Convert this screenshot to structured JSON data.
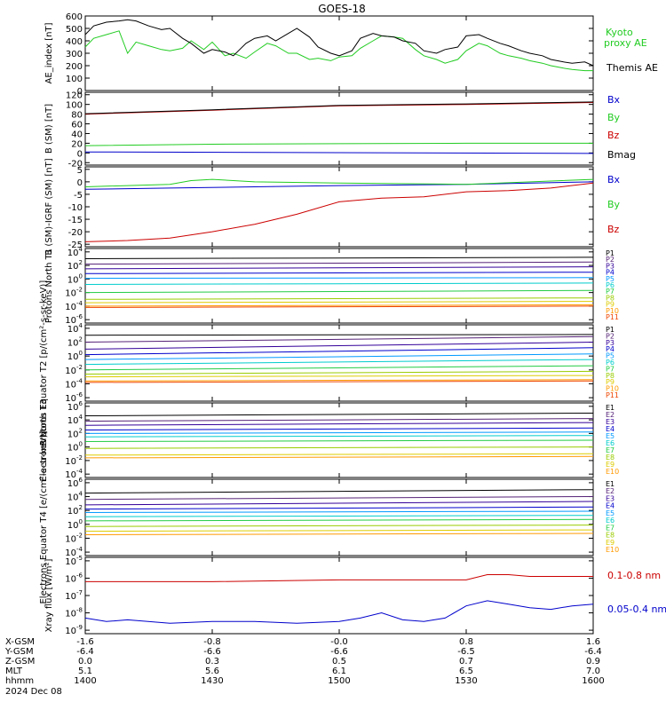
{
  "title": "GOES-18",
  "colors": {
    "black": "#000000",
    "red": "#cc0000",
    "green": "#22cc22",
    "blue": "#0000cc",
    "spec": [
      "#000000",
      "#552277",
      "#330099",
      "#0000cc",
      "#0099ff",
      "#00cccc",
      "#22cc44",
      "#99cc00",
      "#ddcc00",
      "#ff9900",
      "#ee4400",
      "#cc0000"
    ]
  },
  "chart_data": [
    {
      "type": "line",
      "panel": "ae",
      "ylabel": "AE_index [nT]",
      "yticks": [
        "600",
        "500",
        "400",
        "300",
        "200",
        "100",
        "0"
      ],
      "ylim": [
        0,
        600
      ],
      "series": [
        {
          "name": "Kyoto proxy AE",
          "color": "#22cc22",
          "x": [
            1400,
            1402,
            1405,
            1408,
            1410,
            1412,
            1415,
            1418,
            1420,
            1423,
            1425,
            1428,
            1430,
            1433,
            1435,
            1438,
            1440,
            1443,
            1445,
            1448,
            1450,
            1453,
            1455,
            1458,
            1500,
            1503,
            1505,
            1508,
            1510,
            1513,
            1515,
            1518,
            1520,
            1523,
            1525,
            1528,
            1530,
            1533,
            1535,
            1538,
            1540,
            1543,
            1545,
            1548,
            1550,
            1553,
            1555,
            1558,
            1600
          ],
          "y": [
            350,
            420,
            450,
            480,
            300,
            390,
            360,
            330,
            320,
            340,
            400,
            330,
            390,
            280,
            300,
            260,
            310,
            380,
            360,
            300,
            300,
            250,
            260,
            240,
            270,
            280,
            340,
            400,
            440,
            430,
            420,
            330,
            280,
            250,
            220,
            250,
            320,
            380,
            360,
            300,
            280,
            260,
            240,
            220,
            200,
            180,
            170,
            160,
            160
          ]
        },
        {
          "name": "Themis AE",
          "color": "#000000",
          "x": [
            1400,
            1402,
            1405,
            1408,
            1410,
            1412,
            1415,
            1418,
            1420,
            1423,
            1425,
            1428,
            1430,
            1433,
            1435,
            1438,
            1440,
            1443,
            1445,
            1448,
            1450,
            1453,
            1455,
            1458,
            1500,
            1503,
            1505,
            1508,
            1510,
            1513,
            1515,
            1518,
            1520,
            1523,
            1525,
            1528,
            1530,
            1533,
            1535,
            1538,
            1540,
            1543,
            1545,
            1548,
            1550,
            1553,
            1555,
            1558,
            1600
          ],
          "y": [
            450,
            520,
            550,
            560,
            570,
            560,
            520,
            490,
            500,
            420,
            380,
            300,
            330,
            310,
            280,
            380,
            420,
            440,
            400,
            460,
            500,
            430,
            350,
            300,
            280,
            320,
            420,
            460,
            440,
            430,
            400,
            380,
            320,
            300,
            330,
            350,
            440,
            450,
            420,
            380,
            360,
            320,
            300,
            280,
            250,
            230,
            220,
            230,
            200
          ]
        }
      ],
      "legend": [
        "Kyoto",
        "proxy AE",
        "Themis AE"
      ]
    },
    {
      "type": "line",
      "panel": "bsm",
      "ylabel": "B (SM) [nT]",
      "yticks": [
        "120",
        "100",
        "80",
        "60",
        "40",
        "20",
        "0",
        "-20"
      ],
      "ylim": [
        -25,
        125
      ],
      "series": [
        {
          "name": "Bx",
          "color": "#0000cc",
          "x": [
            1400,
            1600
          ],
          "y": [
            2,
            -1
          ]
        },
        {
          "name": "By",
          "color": "#22cc22",
          "x": [
            1400,
            1430,
            1500,
            1530,
            1600
          ],
          "y": [
            15,
            18,
            19,
            20,
            20
          ]
        },
        {
          "name": "Bz",
          "color": "#cc0000",
          "x": [
            1400,
            1430,
            1500,
            1530,
            1600
          ],
          "y": [
            80,
            88,
            97,
            100,
            104
          ]
        },
        {
          "name": "Bmag",
          "color": "#000000",
          "x": [
            1400,
            1430,
            1500,
            1530,
            1600
          ],
          "y": [
            81,
            89,
            98,
            101,
            105
          ]
        }
      ]
    },
    {
      "type": "line",
      "panel": "bsm-igrf",
      "ylabel": "B (SM)-IGRF (SM) [nT]",
      "yticks": [
        "5",
        "0",
        "-5",
        "-10",
        "-15",
        "-20",
        "-25"
      ],
      "ylim": [
        -26,
        6
      ],
      "series": [
        {
          "name": "Bx",
          "color": "#0000cc",
          "x": [
            1400,
            1420,
            1440,
            1500,
            1530,
            1600
          ],
          "y": [
            -3,
            -2.5,
            -2,
            -1.5,
            -1,
            0
          ]
        },
        {
          "name": "By",
          "color": "#22cc22",
          "x": [
            1400,
            1420,
            1425,
            1430,
            1440,
            1500,
            1530,
            1600
          ],
          "y": [
            -2,
            -1,
            0.5,
            1,
            0,
            -0.5,
            -1,
            1
          ]
        },
        {
          "name": "Bz",
          "color": "#cc0000",
          "x": [
            1400,
            1410,
            1420,
            1430,
            1440,
            1450,
            1500,
            1510,
            1520,
            1530,
            1540,
            1550,
            1600
          ],
          "y": [
            -24,
            -23.5,
            -22.5,
            -20,
            -17,
            -13,
            -8,
            -6.5,
            -6,
            -4,
            -3.5,
            -2.5,
            -0.5
          ]
        }
      ]
    },
    {
      "type": "line",
      "panel": "prot-n",
      "ylabel": "Protons North T1",
      "yticks": [
        "10^4",
        "10^2",
        "10^0",
        "10^-2",
        "10^-4",
        "10^-6"
      ],
      "ylim": [
        -6.5,
        4.5
      ],
      "log": true,
      "series": [
        {
          "name": "P1",
          "x": [
            1400,
            1600
          ],
          "y": [
            3.0,
            3.2
          ]
        },
        {
          "name": "P2",
          "x": [
            1400,
            1600
          ],
          "y": [
            2.2,
            2.5
          ]
        },
        {
          "name": "P3",
          "x": [
            1400,
            1600
          ],
          "y": [
            1.5,
            1.8
          ]
        },
        {
          "name": "P4",
          "x": [
            1400,
            1600
          ],
          "y": [
            0.8,
            1.0
          ]
        },
        {
          "name": "P5",
          "x": [
            1400,
            1600
          ],
          "y": [
            0.1,
            0.2
          ]
        },
        {
          "name": "P6",
          "x": [
            1400,
            1600
          ],
          "y": [
            -0.8,
            -0.6
          ]
        },
        {
          "name": "P7",
          "x": [
            1400,
            1600
          ],
          "y": [
            -2.0,
            -1.7
          ]
        },
        {
          "name": "P8",
          "x": [
            1400,
            1600
          ],
          "y": [
            -3.0,
            -2.8
          ]
        },
        {
          "name": "P9",
          "x": [
            1400,
            1600
          ],
          "y": [
            -3.5,
            -3.3
          ]
        },
        {
          "name": "P10",
          "x": [
            1400,
            1600
          ],
          "y": [
            -4.0,
            -3.8
          ]
        },
        {
          "name": "P11",
          "x": [
            1400,
            1600
          ],
          "y": [
            -4.2,
            -4.0
          ]
        }
      ]
    },
    {
      "type": "line",
      "panel": "prot-e",
      "ylabel": "Protons Equator T2 [p/(cm²-s-sr-keV)]",
      "yticks": [
        "10^4",
        "10^2",
        "10^0",
        "10^-2",
        "10^-4",
        "10^-6"
      ],
      "ylim": [
        -6.5,
        4.5
      ],
      "log": true,
      "series": [
        {
          "name": "P1",
          "x": [
            1400,
            1600
          ],
          "y": [
            3.0,
            3.1
          ]
        },
        {
          "name": "P2",
          "x": [
            1400,
            1600
          ],
          "y": [
            2.0,
            2.8
          ]
        },
        {
          "name": "P3",
          "x": [
            1400,
            1600
          ],
          "y": [
            1.0,
            2.0
          ]
        },
        {
          "name": "P4",
          "x": [
            1400,
            1600
          ],
          "y": [
            0.2,
            1.2
          ]
        },
        {
          "name": "P5",
          "x": [
            1400,
            1600
          ],
          "y": [
            -0.5,
            0.3
          ]
        },
        {
          "name": "P6",
          "x": [
            1400,
            1600
          ],
          "y": [
            -1.2,
            -0.5
          ]
        },
        {
          "name": "P7",
          "x": [
            1400,
            1600
          ],
          "y": [
            -2.0,
            -1.4
          ]
        },
        {
          "name": "P8",
          "x": [
            1400,
            1600
          ],
          "y": [
            -2.6,
            -2.2
          ]
        },
        {
          "name": "P9",
          "x": [
            1400,
            1600
          ],
          "y": [
            -3.0,
            -2.8
          ]
        },
        {
          "name": "P10",
          "x": [
            1400,
            1600
          ],
          "y": [
            -3.6,
            -3.4
          ]
        },
        {
          "name": "P11",
          "x": [
            1400,
            1600
          ],
          "y": [
            -3.8,
            -3.6
          ]
        }
      ]
    },
    {
      "type": "line",
      "panel": "elec-n",
      "ylabel": "Electrons North T3",
      "yticks": [
        "10^6",
        "10^4",
        "10^2",
        "10^0",
        "10^-2",
        "10^-4"
      ],
      "ylim": [
        -4.5,
        6.5
      ],
      "log": true,
      "series": [
        {
          "name": "E1",
          "x": [
            1400,
            1600
          ],
          "y": [
            4.6,
            5.0
          ]
        },
        {
          "name": "E2",
          "x": [
            1400,
            1600
          ],
          "y": [
            3.8,
            4.2
          ]
        },
        {
          "name": "E3",
          "x": [
            1400,
            1600
          ],
          "y": [
            3.2,
            3.6
          ]
        },
        {
          "name": "E4",
          "x": [
            1400,
            1600
          ],
          "y": [
            2.5,
            2.8
          ]
        },
        {
          "name": "E5",
          "x": [
            1400,
            1600
          ],
          "y": [
            2.0,
            2.2
          ]
        },
        {
          "name": "E6",
          "x": [
            1400,
            1600
          ],
          "y": [
            1.5,
            1.7
          ]
        },
        {
          "name": "E7",
          "x": [
            1400,
            1600
          ],
          "y": [
            0.8,
            1.0
          ]
        },
        {
          "name": "E8",
          "x": [
            1400,
            1600
          ],
          "y": [
            -0.2,
            0.0
          ]
        },
        {
          "name": "E9",
          "x": [
            1400,
            1600
          ],
          "y": [
            -1.2,
            -1.0
          ]
        },
        {
          "name": "E10",
          "x": [
            1400,
            1600
          ],
          "y": [
            -1.6,
            -1.4
          ]
        }
      ]
    },
    {
      "type": "line",
      "panel": "elec-e",
      "ylabel": "Electrons Equator T4 [e/(cm²-s-sr-keV)]",
      "yticks": [
        "10^6",
        "10^4",
        "10^2",
        "10^0",
        "10^-2",
        "10^-4"
      ],
      "ylim": [
        -4.5,
        6.5
      ],
      "log": true,
      "series": [
        {
          "name": "E1",
          "x": [
            1400,
            1600
          ],
          "y": [
            4.5,
            5.0
          ]
        },
        {
          "name": "E2",
          "x": [
            1400,
            1600
          ],
          "y": [
            3.6,
            4.0
          ]
        },
        {
          "name": "E3",
          "x": [
            1400,
            1600
          ],
          "y": [
            2.8,
            3.3
          ]
        },
        {
          "name": "E4",
          "x": [
            1400,
            1600
          ],
          "y": [
            2.2,
            2.5
          ]
        },
        {
          "name": "E5",
          "x": [
            1400,
            1600
          ],
          "y": [
            1.7,
            1.9
          ]
        },
        {
          "name": "E6",
          "x": [
            1400,
            1600
          ],
          "y": [
            1.1,
            1.3
          ]
        },
        {
          "name": "E7",
          "x": [
            1400,
            1600
          ],
          "y": [
            0.5,
            0.7
          ]
        },
        {
          "name": "E8",
          "x": [
            1400,
            1600
          ],
          "y": [
            -0.3,
            -0.1
          ]
        },
        {
          "name": "E9",
          "x": [
            1400,
            1600
          ],
          "y": [
            -1.0,
            -0.8
          ]
        },
        {
          "name": "E10",
          "x": [
            1400,
            1600
          ],
          "y": [
            -1.5,
            -1.3
          ]
        }
      ]
    },
    {
      "type": "line",
      "panel": "xray",
      "ylabel": "Xray flux [W/m²]",
      "yticks": [
        "10^-5",
        "10^-6",
        "10^-7",
        "10^-8",
        "10^-9"
      ],
      "ylim": [
        -9.2,
        -4.8
      ],
      "log": true,
      "series": [
        {
          "name": "0.1-0.8 nm",
          "color": "#cc0000",
          "x": [
            1400,
            1430,
            1500,
            1520,
            1530,
            1535,
            1540,
            1545,
            1600
          ],
          "y": [
            -6.2,
            -6.2,
            -6.1,
            -6.1,
            -6.1,
            -5.8,
            -5.8,
            -5.9,
            -5.9
          ]
        },
        {
          "name": "0.05-0.4 nm",
          "color": "#0000cc",
          "x": [
            1400,
            1405,
            1410,
            1420,
            1430,
            1440,
            1450,
            1500,
            1505,
            1510,
            1515,
            1520,
            1525,
            1530,
            1535,
            1540,
            1545,
            1550,
            1555,
            1600
          ],
          "y": [
            -8.3,
            -8.5,
            -8.4,
            -8.6,
            -8.5,
            -8.5,
            -8.6,
            -8.5,
            -8.3,
            -8.0,
            -8.4,
            -8.5,
            -8.3,
            -7.6,
            -7.3,
            -7.5,
            -7.7,
            -7.8,
            -7.6,
            -7.5
          ]
        }
      ]
    }
  ],
  "xaxis": {
    "rows": [
      {
        "label": "X-GSM",
        "values": [
          "-1.6",
          "-0.8",
          "-0.0",
          "0.8",
          "1.6"
        ]
      },
      {
        "label": "Y-GSM",
        "values": [
          "-6.4",
          "-6.6",
          "-6.6",
          "-6.5",
          "-6.4"
        ]
      },
      {
        "label": "Z-GSM",
        "values": [
          "0.0",
          "0.3",
          "0.5",
          "0.7",
          "0.9"
        ]
      },
      {
        "label": "MLT",
        "values": [
          "5.1",
          "5.6",
          "6.1",
          "6.5",
          "7.0"
        ]
      },
      {
        "label": "hhmm",
        "values": [
          "1400",
          "1430",
          "1500",
          "1530",
          "1600"
        ]
      }
    ],
    "date": "2024 Dec 08"
  },
  "labels": {
    "bsm": [
      "Bx",
      "By",
      "Bz",
      "Bmag"
    ],
    "bsm_igrf": [
      "Bx",
      "By",
      "Bz"
    ],
    "protons": [
      "P1",
      "P2",
      "P3",
      "P4",
      "P5",
      "P6",
      "P7",
      "P8",
      "P9",
      "P10",
      "P11"
    ],
    "electrons": [
      "E1",
      "E2",
      "E3",
      "E4",
      "E5",
      "E6",
      "E7",
      "E8",
      "E9",
      "E10"
    ],
    "xray": [
      "0.1-0.8 nm",
      "0.05-0.4 nm"
    ]
  }
}
